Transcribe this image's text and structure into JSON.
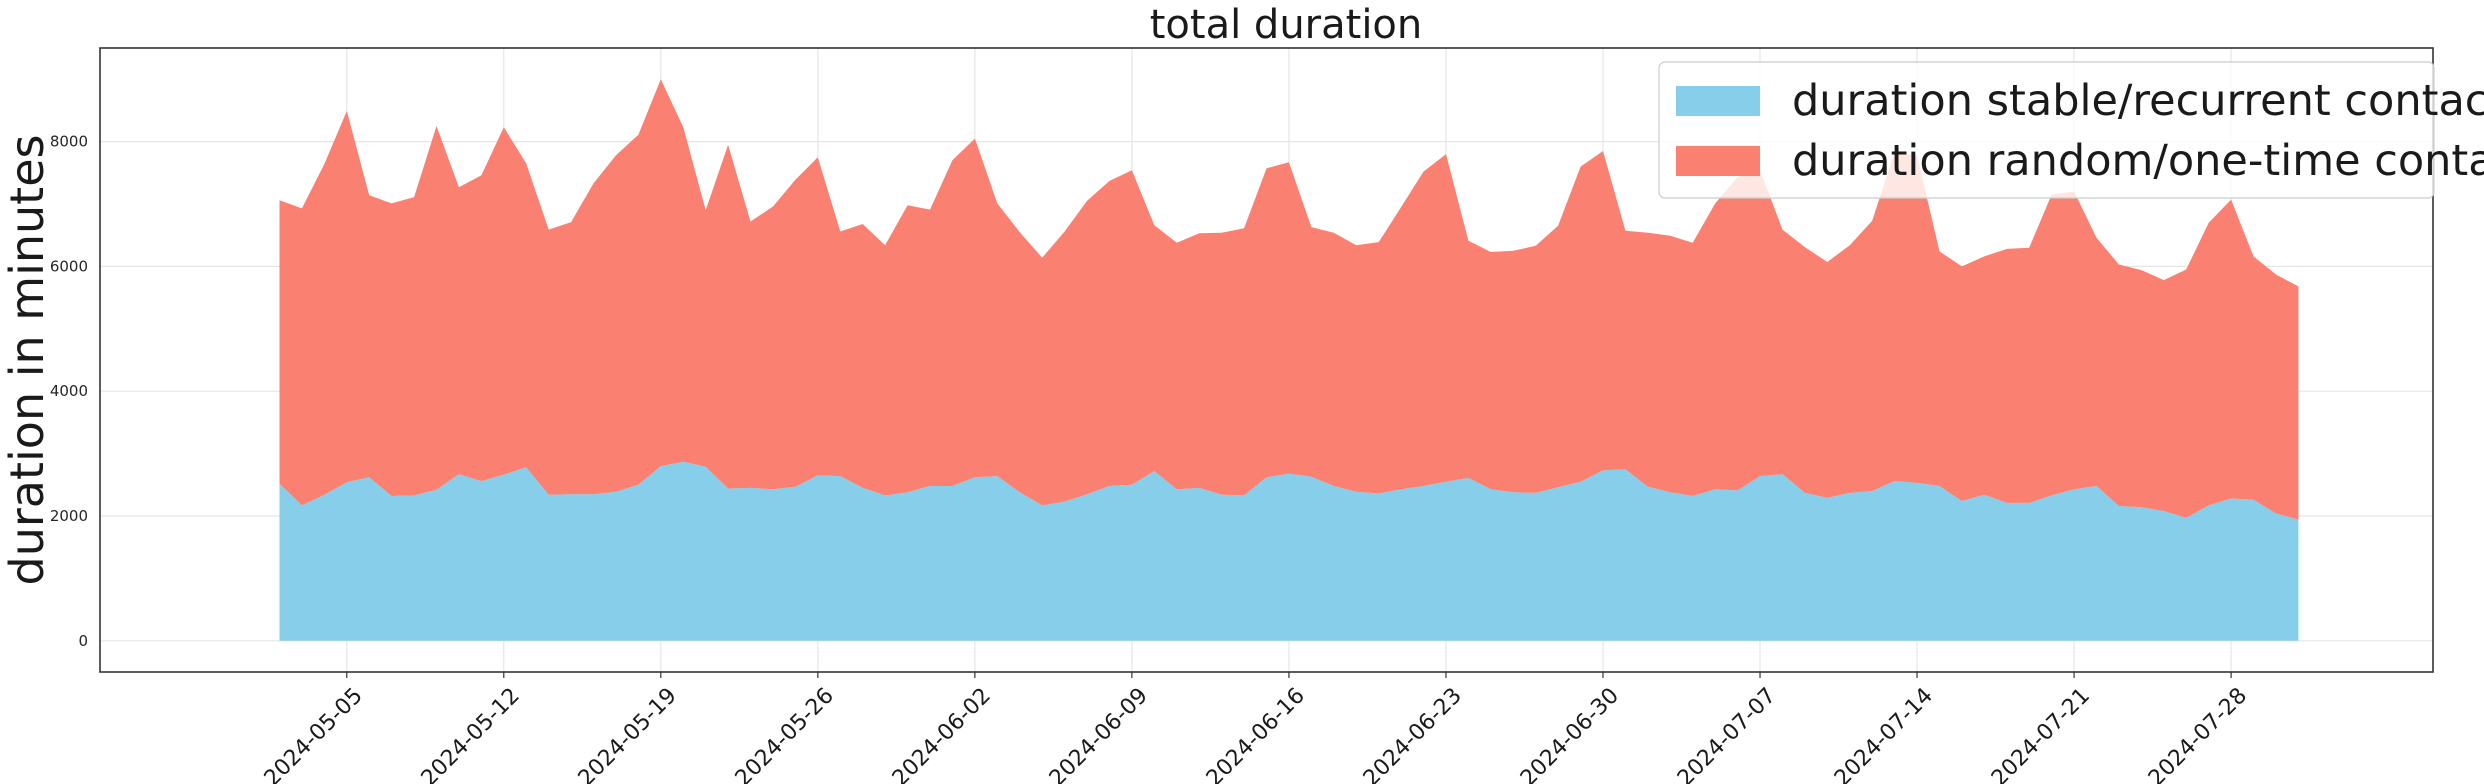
{
  "chart_data": {
    "type": "area",
    "stacked": true,
    "title": "total duration",
    "xlabel": "",
    "ylabel": "duration in minutes",
    "x_start": "2024-05-02",
    "x_end": "2024-07-30",
    "xlim": [
      "2024-04-24",
      "2024-08-06"
    ],
    "ylim": [
      -500,
      9500
    ],
    "yticks": [
      0,
      2000,
      4000,
      6000,
      8000
    ],
    "xticks": [
      "2024-05-05",
      "2024-05-12",
      "2024-05-19",
      "2024-05-26",
      "2024-06-02",
      "2024-06-09",
      "2024-06-16",
      "2024-06-23",
      "2024-06-30",
      "2024-07-07",
      "2024-07-14",
      "2024-07-21",
      "2024-07-28"
    ],
    "grid": true,
    "legend_position": "top-right",
    "series": [
      {
        "name": "duration stable/recurrent contacts",
        "color": "#87CEEB",
        "values": [
          2520,
          2170,
          2340,
          2540,
          2620,
          2320,
          2330,
          2420,
          2670,
          2560,
          2660,
          2780,
          2340,
          2350,
          2350,
          2390,
          2500,
          2800,
          2870,
          2790,
          2440,
          2450,
          2430,
          2470,
          2650,
          2640,
          2450,
          2330,
          2380,
          2480,
          2480,
          2620,
          2640,
          2380,
          2170,
          2230,
          2350,
          2480,
          2500,
          2720,
          2430,
          2450,
          2340,
          2330,
          2620,
          2680,
          2630,
          2480,
          2390,
          2360,
          2430,
          2480,
          2550,
          2610,
          2430,
          2380,
          2370,
          2460,
          2550,
          2730,
          2750,
          2470,
          2380,
          2320,
          2430,
          2410,
          2640,
          2670,
          2370,
          2290,
          2370,
          2400,
          2560,
          2530,
          2480,
          2240,
          2340,
          2210,
          2210,
          2330,
          2430,
          2480,
          2160,
          2140,
          2080,
          1970,
          2170,
          2280,
          2260,
          2040,
          1940
        ]
      },
      {
        "name": "duration random/one-time contacts",
        "color": "#FA8072",
        "values": [
          4540,
          4760,
          5300,
          5950,
          4520,
          4690,
          4780,
          5830,
          4600,
          4900,
          5570,
          4870,
          4250,
          4360,
          4980,
          5390,
          5610,
          6200,
          5360,
          4110,
          5510,
          4270,
          4530,
          4920,
          5100,
          3920,
          4230,
          4010,
          4600,
          4430,
          5220,
          5430,
          4370,
          4170,
          3970,
          4330,
          4700,
          4890,
          5040,
          3940,
          3950,
          4080,
          4200,
          4280,
          4950,
          4990,
          4000,
          4060,
          3950,
          4030,
          4520,
          5040,
          5250,
          3800,
          3800,
          3870,
          3960,
          4190,
          5050,
          5120,
          3820,
          4070,
          4110,
          4060,
          4580,
          5020,
          4900,
          3920,
          3940,
          3780,
          3970,
          4330,
          5270,
          5250,
          3760,
          3760,
          3820,
          4070,
          4090,
          4820,
          4770,
          3980,
          3870,
          3800,
          3700,
          3980,
          4530,
          4790,
          3900,
          3830,
          3740
        ]
      }
    ]
  }
}
